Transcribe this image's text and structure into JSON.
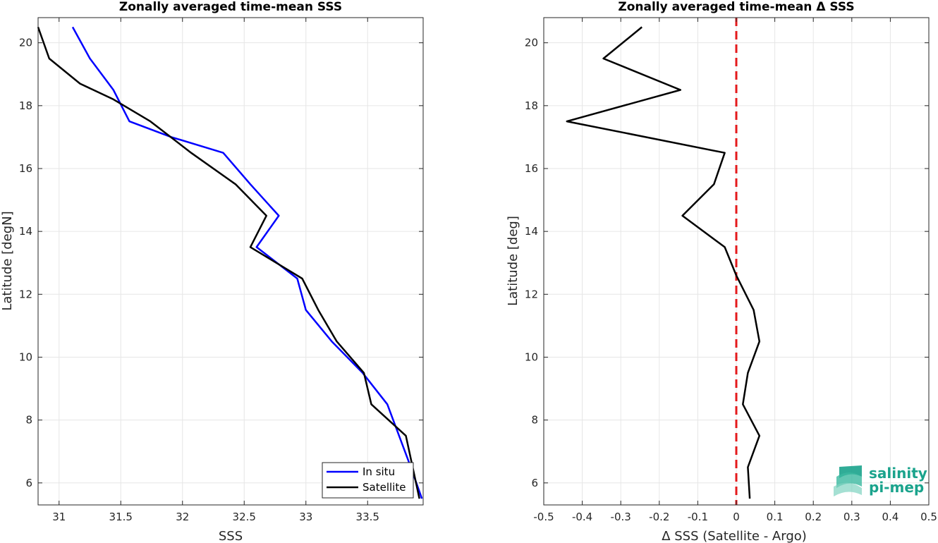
{
  "chart_data": [
    {
      "type": "line",
      "title": "Zonally averaged time-mean SSS",
      "xlabel": "SSS",
      "ylabel": "Latitude [degN]",
      "xlim": [
        30.83,
        33.95
      ],
      "ylim": [
        5.3,
        20.8
      ],
      "xticks": [
        "31",
        "31.5",
        "32",
        "32.5",
        "33",
        "33.5"
      ],
      "xtick_values": [
        31,
        31.5,
        32,
        32.5,
        33,
        33.5
      ],
      "yticks": [
        "6",
        "8",
        "10",
        "12",
        "14",
        "16",
        "18",
        "20"
      ],
      "ytick_values": [
        6,
        8,
        10,
        12,
        14,
        16,
        18,
        20
      ],
      "grid": true,
      "legend_position": "bottom-right",
      "series": [
        {
          "name": "In situ",
          "color": "#0000ff",
          "points": [
            [
              31.11,
              20.5
            ],
            [
              31.25,
              19.5
            ],
            [
              31.44,
              18.5
            ],
            [
              31.57,
              17.5
            ],
            [
              31.91,
              17.0
            ],
            [
              32.33,
              16.5
            ],
            [
              32.55,
              15.5
            ],
            [
              32.78,
              14.5
            ],
            [
              32.6,
              13.5
            ],
            [
              32.93,
              12.5
            ],
            [
              33.0,
              11.5
            ],
            [
              33.21,
              10.5
            ],
            [
              33.46,
              9.5
            ],
            [
              33.66,
              8.5
            ],
            [
              33.85,
              6.5
            ],
            [
              33.94,
              5.5
            ]
          ]
        },
        {
          "name": "Satellite",
          "color": "#000000",
          "points": [
            [
              30.83,
              20.5
            ],
            [
              30.92,
              19.5
            ],
            [
              31.17,
              18.7
            ],
            [
              31.44,
              18.2
            ],
            [
              31.74,
              17.5
            ],
            [
              32.07,
              16.5
            ],
            [
              32.43,
              15.5
            ],
            [
              32.68,
              14.5
            ],
            [
              32.55,
              13.5
            ],
            [
              32.97,
              12.5
            ],
            [
              33.1,
              11.5
            ],
            [
              33.25,
              10.5
            ],
            [
              33.47,
              9.5
            ],
            [
              33.53,
              8.5
            ],
            [
              33.81,
              7.5
            ],
            [
              33.92,
              5.5
            ]
          ]
        }
      ]
    },
    {
      "type": "line",
      "title": "Zonally averaged time-mean Δ SSS",
      "xlabel": "Δ SSS (Satellite - Argo)",
      "ylabel": "Latitude [deg]",
      "xlim": [
        -0.5,
        0.5
      ],
      "ylim": [
        5.3,
        20.8
      ],
      "xticks": [
        "-0.5",
        "-0.4",
        "-0.3",
        "-0.2",
        "-0.1",
        "0",
        "0.1",
        "0.2",
        "0.3",
        "0.4",
        "0.5"
      ],
      "xtick_values": [
        -0.5,
        -0.4,
        -0.3,
        -0.2,
        -0.1,
        0,
        0.1,
        0.2,
        0.3,
        0.4,
        0.5
      ],
      "yticks": [
        "6",
        "8",
        "10",
        "12",
        "14",
        "16",
        "18",
        "20"
      ],
      "ytick_values": [
        6,
        8,
        10,
        12,
        14,
        16,
        18,
        20
      ],
      "grid": true,
      "reference_line": {
        "x": 0,
        "color": "#e41a1c",
        "style": "dashed"
      },
      "series": [
        {
          "color": "#000000",
          "points": [
            [
              -0.245,
              20.5
            ],
            [
              -0.345,
              19.5
            ],
            [
              -0.145,
              18.5
            ],
            [
              -0.44,
              17.5
            ],
            [
              -0.03,
              16.5
            ],
            [
              -0.058,
              15.5
            ],
            [
              -0.14,
              14.5
            ],
            [
              -0.03,
              13.5
            ],
            [
              0.0,
              12.6
            ],
            [
              0.045,
              11.5
            ],
            [
              0.06,
              10.5
            ],
            [
              0.03,
              9.5
            ],
            [
              0.017,
              8.5
            ],
            [
              0.06,
              7.5
            ],
            [
              0.03,
              6.5
            ],
            [
              0.035,
              5.5
            ]
          ]
        }
      ]
    }
  ],
  "logo": {
    "line1": "salinity",
    "line2": "pi-mep",
    "color": "#1aa38c"
  }
}
